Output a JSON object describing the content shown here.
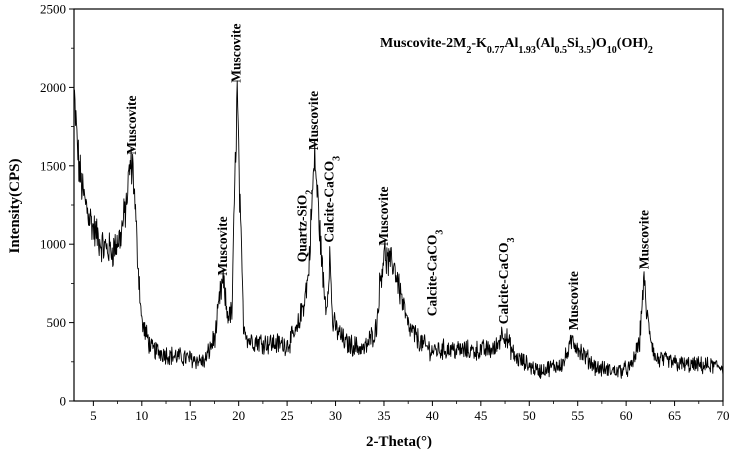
{
  "chart_data": {
    "type": "line",
    "title": "",
    "formula": {
      "parts": [
        {
          "text": "Muscovite-2M",
          "style": "normal"
        },
        {
          "text": "2",
          "style": "sub"
        },
        {
          "text": "-K",
          "style": "normal"
        },
        {
          "text": "0.77",
          "style": "sub"
        },
        {
          "text": "Al",
          "style": "normal"
        },
        {
          "text": "1.93",
          "style": "sub"
        },
        {
          "text": "(Al",
          "style": "normal"
        },
        {
          "text": "0.5",
          "style": "sub"
        },
        {
          "text": "Si",
          "style": "normal"
        },
        {
          "text": "3.5",
          "style": "sub"
        },
        {
          "text": ")O",
          "style": "normal"
        },
        {
          "text": "10",
          "style": "sub"
        },
        {
          "text": "(OH)",
          "style": "normal"
        },
        {
          "text": "2",
          "style": "sub"
        }
      ]
    },
    "xlabel": "2-Theta(°)",
    "ylabel": "Intensity(CPS)",
    "xlim": [
      3,
      70
    ],
    "ylim": [
      0,
      2500
    ],
    "xticks": [
      5,
      10,
      15,
      20,
      25,
      30,
      35,
      40,
      45,
      50,
      55,
      60,
      65,
      70
    ],
    "yticks": [
      0,
      500,
      1000,
      1500,
      2000,
      2500
    ],
    "grid": false,
    "series": [
      {
        "color": "#000000",
        "profile": [
          [
            3.0,
            1950
          ],
          [
            3.5,
            1500
          ],
          [
            4.0,
            1300
          ],
          [
            5.0,
            1100
          ],
          [
            6.0,
            980
          ],
          [
            7.0,
            960
          ],
          [
            7.8,
            1050
          ],
          [
            8.4,
            1250
          ],
          [
            8.8,
            1500
          ],
          [
            9.1,
            1480
          ],
          [
            9.5,
            1000
          ],
          [
            10.0,
            500
          ],
          [
            11.0,
            330
          ],
          [
            13.0,
            290
          ],
          [
            15.0,
            270
          ],
          [
            16.5,
            250
          ],
          [
            17.6,
            420
          ],
          [
            18.1,
            680
          ],
          [
            18.4,
            760
          ],
          [
            18.8,
            560
          ],
          [
            19.3,
            550
          ],
          [
            19.65,
            1500
          ],
          [
            19.85,
            1990
          ],
          [
            20.1,
            1300
          ],
          [
            20.5,
            500
          ],
          [
            21.0,
            390
          ],
          [
            23.0,
            370
          ],
          [
            25.0,
            360
          ],
          [
            26.0,
            440
          ],
          [
            26.6,
            600
          ],
          [
            26.8,
            650
          ],
          [
            27.2,
            800
          ],
          [
            27.6,
            1300
          ],
          [
            27.85,
            1560
          ],
          [
            28.2,
            1250
          ],
          [
            28.8,
            700
          ],
          [
            29.1,
            600
          ],
          [
            29.4,
            940
          ],
          [
            29.7,
            500
          ],
          [
            31.0,
            370
          ],
          [
            33.0,
            330
          ],
          [
            34.2,
            460
          ],
          [
            34.6,
            760
          ],
          [
            35.0,
            950
          ],
          [
            35.5,
            870
          ],
          [
            36.0,
            880
          ],
          [
            36.6,
            720
          ],
          [
            37.5,
            470
          ],
          [
            39.0,
            360
          ],
          [
            40.0,
            320
          ],
          [
            41.5,
            330
          ],
          [
            44.0,
            320
          ],
          [
            46.5,
            330
          ],
          [
            47.3,
            450
          ],
          [
            47.7,
            390
          ],
          [
            48.5,
            280
          ],
          [
            51.0,
            190
          ],
          [
            53.5,
            240
          ],
          [
            54.5,
            390
          ],
          [
            55.5,
            300
          ],
          [
            57.0,
            210
          ],
          [
            59.0,
            190
          ],
          [
            60.5,
            210
          ],
          [
            61.4,
            380
          ],
          [
            61.8,
            780
          ],
          [
            62.2,
            520
          ],
          [
            63.0,
            270
          ],
          [
            66.0,
            230
          ],
          [
            70.0,
            220
          ]
        ],
        "point_count": 1341
      }
    ],
    "annotations": [
      {
        "text": "Muscovite",
        "x": 9.0,
        "y": 1570
      },
      {
        "text": "Muscovite",
        "x": 18.4,
        "y": 800
      },
      {
        "text": "Muscovite",
        "x": 19.8,
        "y": 2030
      },
      {
        "text": "Quartz-SiO",
        "sub": "2",
        "x": 26.6,
        "y": 885
      },
      {
        "text": "Muscovite",
        "x": 27.8,
        "y": 1600
      },
      {
        "text": "Calcite-CaCO",
        "sub": "3",
        "x": 29.4,
        "y": 1010
      },
      {
        "text": "Muscovite",
        "x": 35.0,
        "y": 990
      },
      {
        "text": "Calcite-CaCO",
        "sub": "3",
        "x": 40.0,
        "y": 540
      },
      {
        "text": "Calcite-CaCO",
        "sub": "3",
        "x": 47.4,
        "y": 490
      },
      {
        "text": "Muscovite",
        "x": 54.6,
        "y": 450
      },
      {
        "text": "Muscovite",
        "x": 61.9,
        "y": 840
      }
    ]
  }
}
